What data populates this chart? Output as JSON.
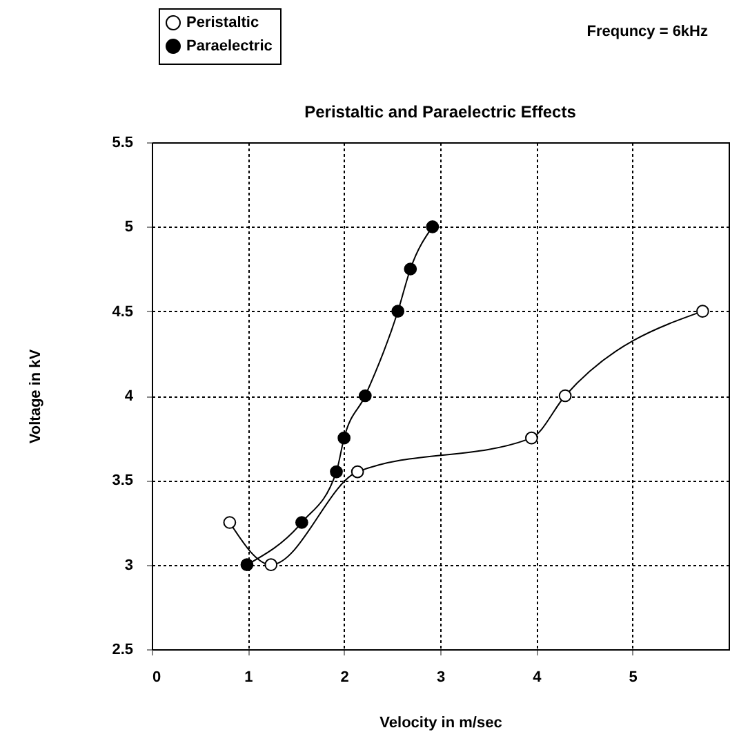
{
  "chart_data": {
    "type": "line",
    "title": "Peristaltic and Paraelectric Effects",
    "xlabel": "Velocity in  m/sec",
    "ylabel": "Voltage in kV",
    "annotations": [
      "Frequncy = 6kHz"
    ],
    "xlim": [
      0,
      6
    ],
    "xticks": [
      0,
      1,
      2,
      3,
      4,
      5
    ],
    "ylim": [
      2.5,
      5.5
    ],
    "yticks": [
      2.5,
      3,
      3.5,
      4,
      4.5,
      5,
      5.5
    ],
    "grid": true,
    "legend": "top left",
    "marker": "circle",
    "line_style": "solid",
    "series": [
      {
        "name": "Peristaltic",
        "color": "#000000",
        "x": [
          0.81,
          1.24,
          2.14,
          3.95,
          4.3,
          5.73
        ],
        "values": [
          3.25,
          3.0,
          3.55,
          3.75,
          4.0,
          4.5
        ]
      },
      {
        "name": "Paraelectric",
        "color": "#000000",
        "x": [
          0.99,
          1.56,
          1.92,
          2.0,
          2.22,
          2.56,
          2.69,
          2.92
        ],
        "values": [
          3.0,
          3.25,
          3.55,
          3.75,
          4.0,
          4.5,
          4.75,
          5.0
        ]
      }
    ]
  }
}
